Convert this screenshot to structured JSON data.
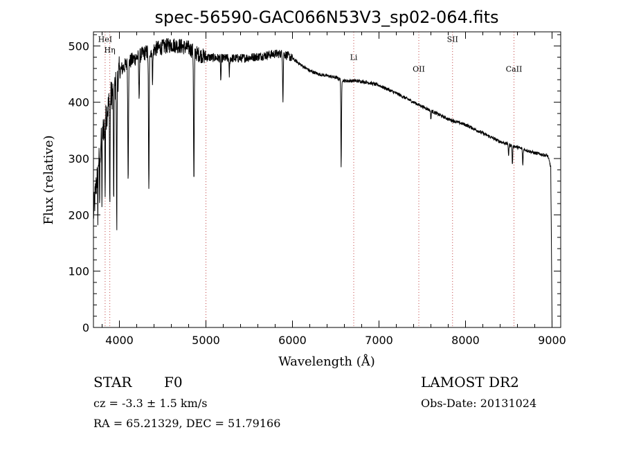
{
  "chart_data": {
    "type": "line",
    "title": "spec-56590-GAC066N53V3_sp02-064.fits",
    "xlabel": "Wavelength (Å)",
    "ylabel": "Flux (relative)",
    "xlim": [
      3700,
      9100
    ],
    "ylim": [
      0,
      525
    ],
    "xticks": [
      4000,
      5000,
      6000,
      7000,
      8000,
      9000
    ],
    "yticks": [
      0,
      100,
      200,
      300,
      400,
      500
    ],
    "grid": false,
    "colors": {
      "spectrum": "#000000",
      "line_marker": "#c04040"
    },
    "continuum": [
      [
        3700,
        200
      ],
      [
        3760,
        300
      ],
      [
        3800,
        340
      ],
      [
        3850,
        380
      ],
      [
        3900,
        410
      ],
      [
        3950,
        425
      ],
      [
        4000,
        455
      ],
      [
        4100,
        470
      ],
      [
        4200,
        480
      ],
      [
        4300,
        488
      ],
      [
        4400,
        494
      ],
      [
        4500,
        498
      ],
      [
        4600,
        502
      ],
      [
        4700,
        500
      ],
      [
        4800,
        496
      ],
      [
        4900,
        486
      ],
      [
        5000,
        480
      ],
      [
        5200,
        478
      ],
      [
        5400,
        478
      ],
      [
        5600,
        481
      ],
      [
        5800,
        486
      ],
      [
        5900,
        486
      ],
      [
        6000,
        478
      ],
      [
        6100,
        466
      ],
      [
        6200,
        456
      ],
      [
        6300,
        450
      ],
      [
        6400,
        447
      ],
      [
        6500,
        444
      ],
      [
        6600,
        438
      ],
      [
        6700,
        438
      ],
      [
        6800,
        437
      ],
      [
        6900,
        434
      ],
      [
        7000,
        430
      ],
      [
        7200,
        416
      ],
      [
        7400,
        400
      ],
      [
        7600,
        385
      ],
      [
        7800,
        370
      ],
      [
        8000,
        360
      ],
      [
        8200,
        345
      ],
      [
        8400,
        330
      ],
      [
        8600,
        320
      ],
      [
        8800,
        310
      ],
      [
        8950,
        305
      ],
      [
        8985,
        285
      ],
      [
        8995,
        100
      ],
      [
        9000,
        0
      ]
    ],
    "absorption_lines": [
      {
        "wavelength": 3750,
        "depth": 80
      },
      {
        "wavelength": 3771,
        "depth": 90
      },
      {
        "wavelength": 3798,
        "depth": 110
      },
      {
        "wavelength": 3835,
        "depth": 130
      },
      {
        "wavelength": 3889,
        "depth": 190
      },
      {
        "wavelength": 3934,
        "depth": 230
      },
      {
        "wavelength": 3969,
        "depth": 270
      },
      {
        "wavelength": 4101,
        "depth": 200
      },
      {
        "wavelength": 4227,
        "depth": 70
      },
      {
        "wavelength": 4340,
        "depth": 250
      },
      {
        "wavelength": 4383,
        "depth": 50
      },
      {
        "wavelength": 4861,
        "depth": 235
      },
      {
        "wavelength": 5172,
        "depth": 40
      },
      {
        "wavelength": 5270,
        "depth": 30
      },
      {
        "wavelength": 5890,
        "depth": 80
      },
      {
        "wavelength": 6563,
        "depth": 160
      },
      {
        "wavelength": 7600,
        "depth": 15
      },
      {
        "wavelength": 8498,
        "depth": 20
      },
      {
        "wavelength": 8542,
        "depth": 35
      },
      {
        "wavelength": 8662,
        "depth": 30
      }
    ],
    "line_markers": [
      {
        "wavelength": 3835,
        "label": "HeI",
        "label_y": 507
      },
      {
        "wavelength": 3889,
        "label": "Hη",
        "label_y": 488
      },
      {
        "wavelength": 5000,
        "label": "",
        "label_y": 0
      },
      {
        "wavelength": 6708,
        "label": "Li",
        "label_y": 475
      },
      {
        "wavelength": 7460,
        "label": "OII",
        "label_y": 454
      },
      {
        "wavelength": 7850,
        "label": "SII",
        "label_y": 507
      },
      {
        "wavelength": 8560,
        "label": "CaII",
        "label_y": 454
      }
    ]
  },
  "info": {
    "object_class": "STAR",
    "subclass": "F0",
    "survey": "LAMOST DR2",
    "redshift": "cz = -3.3 ± 1.5 km/s",
    "obs_date": "Obs-Date: 20131024",
    "coords": "RA =  65.21329, DEC =  51.79166"
  }
}
